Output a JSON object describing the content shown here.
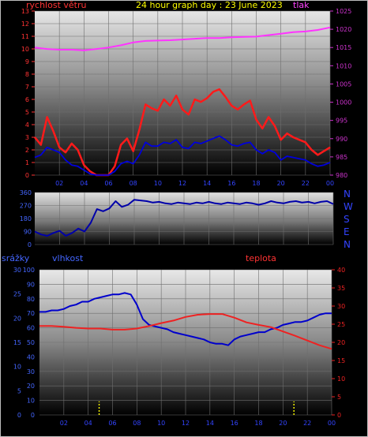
{
  "header": {
    "left_label": "rychlost větru",
    "title": "24 hour graph day : 23 June 2023",
    "right_label": "tlak"
  },
  "colors": {
    "wind": "#ff1a1a",
    "gust": "#0000dd",
    "pressure": "#ff33ff",
    "direction": "#0000aa",
    "humidity": "#0000cc",
    "temperature": "#ee2222",
    "rain": "#ffff00",
    "title": "#ffff00",
    "axis_left_wind": "#ff3333",
    "axis_right_pressure": "#cc33cc"
  },
  "bottom_labels": {
    "rain": "srážky",
    "humidity": "vlhkost",
    "temperature": "teplota"
  },
  "compass": [
    "N",
    "W",
    "S",
    "E",
    "N"
  ],
  "chart_data": [
    {
      "type": "line",
      "panel": "wind-pressure",
      "title": "24 hour graph day : 23 June 2023",
      "xlabel": "",
      "ylabel": "rychlost větru",
      "y2label": "tlak",
      "x_ticks": [
        "02",
        "04",
        "06",
        "08",
        "10",
        "12",
        "14",
        "16",
        "18",
        "20",
        "22",
        "00"
      ],
      "x_tick_hours": [
        2,
        4,
        6,
        8,
        10,
        12,
        14,
        16,
        18,
        20,
        22,
        24
      ],
      "ylim": [
        0,
        13
      ],
      "y_ticks": [
        0,
        1,
        2,
        3,
        4,
        5,
        6,
        7,
        8,
        9,
        10,
        11,
        12,
        13
      ],
      "y2lim": [
        980,
        1025
      ],
      "y2_ticks": [
        980,
        985,
        990,
        995,
        1000,
        1005,
        1010,
        1015,
        1020,
        1025
      ],
      "grid": true,
      "series": [
        {
          "name": "rychlost větru",
          "axis": "left",
          "x": [
            0.0,
            0.5,
            1.0,
            1.5,
            2.0,
            2.5,
            3.0,
            3.5,
            4.0,
            4.5,
            5.0,
            5.5,
            6.0,
            6.5,
            7.0,
            7.5,
            8.0,
            8.5,
            9.0,
            9.5,
            10.0,
            10.5,
            11.0,
            11.5,
            12.0,
            12.5,
            13.0,
            13.5,
            14.0,
            14.5,
            15.0,
            15.5,
            16.0,
            16.5,
            17.0,
            17.5,
            18.0,
            18.5,
            19.0,
            19.5,
            20.0,
            20.5,
            21.0,
            21.5,
            22.0,
            22.5,
            23.0,
            23.5,
            24.0
          ],
          "values": [
            3.0,
            2.4,
            4.6,
            3.5,
            2.2,
            1.8,
            2.5,
            2.0,
            0.8,
            0.3,
            0.0,
            0.0,
            0.0,
            0.7,
            2.4,
            2.9,
            1.9,
            3.6,
            5.6,
            5.3,
            5.1,
            6.0,
            5.5,
            6.3,
            5.2,
            4.8,
            6.0,
            5.8,
            6.1,
            6.6,
            6.8,
            6.2,
            5.5,
            5.2,
            5.6,
            5.9,
            4.4,
            3.7,
            4.6,
            3.9,
            2.8,
            3.3,
            3.0,
            2.8,
            2.6,
            2.0,
            1.6,
            1.9,
            2.2
          ]
        },
        {
          "name": "",
          "axis": "left",
          "x": [
            0.0,
            0.5,
            1.0,
            1.5,
            2.0,
            2.5,
            3.0,
            3.5,
            4.0,
            4.5,
            5.0,
            5.5,
            6.0,
            6.5,
            7.0,
            7.5,
            8.0,
            8.5,
            9.0,
            9.5,
            10.0,
            10.5,
            11.0,
            11.5,
            12.0,
            12.5,
            13.0,
            13.5,
            14.0,
            14.5,
            15.0,
            15.5,
            16.0,
            16.5,
            17.0,
            17.5,
            18.0,
            18.5,
            19.0,
            19.5,
            20.0,
            20.5,
            21.0,
            21.5,
            22.0,
            22.5,
            23.0,
            23.5,
            24.0
          ],
          "values": [
            1.4,
            1.6,
            2.2,
            2.0,
            1.8,
            1.2,
            0.8,
            0.7,
            0.4,
            0.1,
            0.0,
            0.0,
            0.0,
            0.3,
            0.9,
            1.1,
            0.9,
            1.6,
            2.6,
            2.3,
            2.3,
            2.6,
            2.5,
            2.8,
            2.2,
            2.1,
            2.6,
            2.5,
            2.7,
            2.9,
            3.1,
            2.8,
            2.4,
            2.3,
            2.5,
            2.6,
            2.0,
            1.7,
            2.0,
            1.8,
            1.2,
            1.5,
            1.4,
            1.3,
            1.2,
            0.9,
            0.7,
            0.8,
            1.0
          ]
        },
        {
          "name": "tlak",
          "axis": "right",
          "x": [
            0,
            1,
            2,
            3,
            4,
            5,
            6,
            7,
            8,
            9,
            10,
            11,
            12,
            13,
            14,
            15,
            16,
            17,
            18,
            19,
            20,
            21,
            22,
            23,
            24
          ],
          "values": [
            1015.0,
            1014.6,
            1014.4,
            1014.4,
            1014.2,
            1014.6,
            1015.0,
            1015.6,
            1016.4,
            1016.8,
            1016.9,
            1017.0,
            1017.2,
            1017.4,
            1017.6,
            1017.6,
            1017.8,
            1017.9,
            1018.0,
            1018.4,
            1018.8,
            1019.2,
            1019.4,
            1019.8,
            1020.5
          ]
        }
      ]
    },
    {
      "type": "line",
      "panel": "wind-direction",
      "xlabel": "",
      "ylabel": "",
      "ylim": [
        0,
        360
      ],
      "y_ticks": [
        0,
        90,
        180,
        270,
        360
      ],
      "x_tick_hours": [
        2,
        4,
        6,
        8,
        10,
        12,
        14,
        16,
        18,
        20,
        22,
        24
      ],
      "grid": true,
      "series": [
        {
          "name": "",
          "x": [
            0.0,
            0.5,
            1.0,
            1.5,
            2.0,
            2.5,
            3.0,
            3.5,
            4.0,
            4.5,
            5.0,
            5.5,
            6.0,
            6.5,
            7.0,
            7.5,
            8.0,
            8.5,
            9.0,
            9.5,
            10.0,
            10.5,
            11.0,
            11.5,
            12.0,
            12.5,
            13.0,
            13.5,
            14.0,
            14.5,
            15.0,
            15.5,
            16.0,
            16.5,
            17.0,
            17.5,
            18.0,
            18.5,
            19.0,
            19.5,
            20.0,
            20.5,
            21.0,
            21.5,
            22.0,
            22.5,
            23.0,
            23.5,
            24.0
          ],
          "values": [
            90,
            70,
            60,
            80,
            95,
            60,
            80,
            110,
            90,
            150,
            245,
            230,
            250,
            300,
            260,
            275,
            310,
            305,
            300,
            290,
            295,
            285,
            280,
            290,
            285,
            280,
            290,
            285,
            295,
            285,
            280,
            290,
            285,
            280,
            290,
            285,
            275,
            285,
            300,
            290,
            285,
            295,
            300,
            290,
            295,
            285,
            295,
            300,
            280
          ]
        }
      ]
    },
    {
      "type": "line",
      "panel": "humidity-temperature-rain",
      "xlabel": "",
      "ylabel": "vlhkost",
      "y2label": "teplota",
      "x_ticks": [
        "02",
        "04",
        "06",
        "08",
        "10",
        "12",
        "14",
        "16",
        "18",
        "20",
        "22",
        "00"
      ],
      "x_tick_hours": [
        2,
        4,
        6,
        8,
        10,
        12,
        14,
        16,
        18,
        20,
        22,
        24
      ],
      "ylim": [
        0,
        100
      ],
      "y_ticks": [
        0,
        10,
        20,
        30,
        40,
        50,
        60,
        70,
        80,
        90,
        100
      ],
      "rain_lim": [
        0,
        30
      ],
      "rain_ticks": [
        0,
        5,
        10,
        15,
        20,
        25,
        30
      ],
      "y2lim": [
        0,
        40
      ],
      "y2_ticks": [
        0,
        5,
        10,
        15,
        20,
        25,
        30,
        35,
        40
      ],
      "grid": true,
      "series": [
        {
          "name": "vlhkost",
          "axis": "left",
          "x": [
            0.0,
            0.5,
            1.0,
            1.5,
            2.0,
            2.5,
            3.0,
            3.5,
            4.0,
            4.5,
            5.0,
            5.5,
            6.0,
            6.5,
            7.0,
            7.5,
            8.0,
            8.5,
            9.0,
            9.5,
            10.0,
            10.5,
            11.0,
            11.5,
            12.0,
            12.5,
            13.0,
            13.5,
            14.0,
            14.5,
            15.0,
            15.5,
            16.0,
            16.5,
            17.0,
            17.5,
            18.0,
            18.5,
            19.0,
            19.5,
            20.0,
            20.5,
            21.0,
            21.5,
            22.0,
            22.5,
            23.0,
            23.5,
            24.0
          ],
          "values": [
            71,
            71,
            72,
            72,
            73,
            75,
            76,
            78,
            78,
            80,
            81,
            82,
            83,
            83,
            84,
            83,
            76,
            66,
            62,
            61,
            60,
            59,
            57,
            56,
            55,
            54,
            53,
            52,
            50,
            49,
            49,
            48,
            52,
            54,
            55,
            56,
            57,
            57,
            59,
            60,
            62,
            63,
            64,
            64,
            65,
            67,
            69,
            70,
            70
          ]
        },
        {
          "name": "teplota",
          "axis": "right",
          "x": [
            0,
            1,
            2,
            3,
            4,
            5,
            6,
            7,
            8,
            9,
            10,
            11,
            12,
            13,
            14,
            15,
            16,
            17,
            18,
            19,
            20,
            21,
            22,
            23,
            24
          ],
          "values": [
            24.5,
            24.5,
            24.3,
            24.0,
            23.8,
            23.8,
            23.5,
            23.5,
            23.8,
            24.5,
            25.3,
            26.0,
            27.0,
            27.6,
            27.8,
            27.8,
            26.8,
            25.5,
            24.8,
            24.2,
            23.0,
            21.8,
            20.5,
            19.2,
            18.2
          ]
        },
        {
          "name": "srážky",
          "axis": "rain",
          "x": [
            4.9,
            20.9
          ],
          "values": [
            2.8,
            2.8
          ]
        }
      ]
    }
  ]
}
